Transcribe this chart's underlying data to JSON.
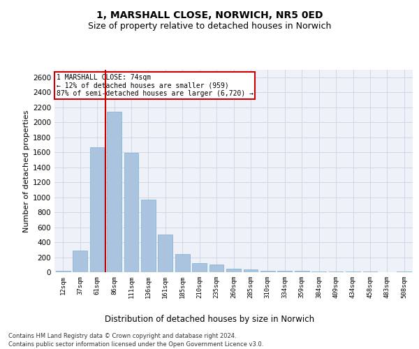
{
  "title": "1, MARSHALL CLOSE, NORWICH, NR5 0ED",
  "subtitle": "Size of property relative to detached houses in Norwich",
  "xlabel": "Distribution of detached houses by size in Norwich",
  "ylabel": "Number of detached properties",
  "categories": [
    "12sqm",
    "37sqm",
    "61sqm",
    "86sqm",
    "111sqm",
    "136sqm",
    "161sqm",
    "185sqm",
    "210sqm",
    "235sqm",
    "260sqm",
    "285sqm",
    "310sqm",
    "334sqm",
    "359sqm",
    "384sqm",
    "409sqm",
    "434sqm",
    "458sqm",
    "483sqm",
    "508sqm"
  ],
  "values": [
    20,
    290,
    1670,
    2140,
    1590,
    970,
    500,
    245,
    120,
    100,
    50,
    35,
    22,
    18,
    15,
    13,
    10,
    8,
    5,
    4,
    12
  ],
  "bar_color": "#aac4e0",
  "bar_edgecolor": "#7aafd4",
  "vline_x": 2.5,
  "vline_color": "#cc0000",
  "annotation_line1": "1 MARSHALL CLOSE: 74sqm",
  "annotation_line2": "← 12% of detached houses are smaller (959)",
  "annotation_line3": "87% of semi-detached houses are larger (6,720) →",
  "annotation_box_facecolor": "white",
  "annotation_box_edgecolor": "#cc0000",
  "ylim": [
    0,
    2700
  ],
  "yticks": [
    0,
    200,
    400,
    600,
    800,
    1000,
    1200,
    1400,
    1600,
    1800,
    2000,
    2200,
    2400,
    2600
  ],
  "grid_color": "#d0d8e8",
  "bg_color": "#eef2f8",
  "footer_line1": "Contains HM Land Registry data © Crown copyright and database right 2024.",
  "footer_line2": "Contains public sector information licensed under the Open Government Licence v3.0.",
  "title_fontsize": 10,
  "subtitle_fontsize": 9,
  "xlabel_fontsize": 8.5,
  "ylabel_fontsize": 8
}
